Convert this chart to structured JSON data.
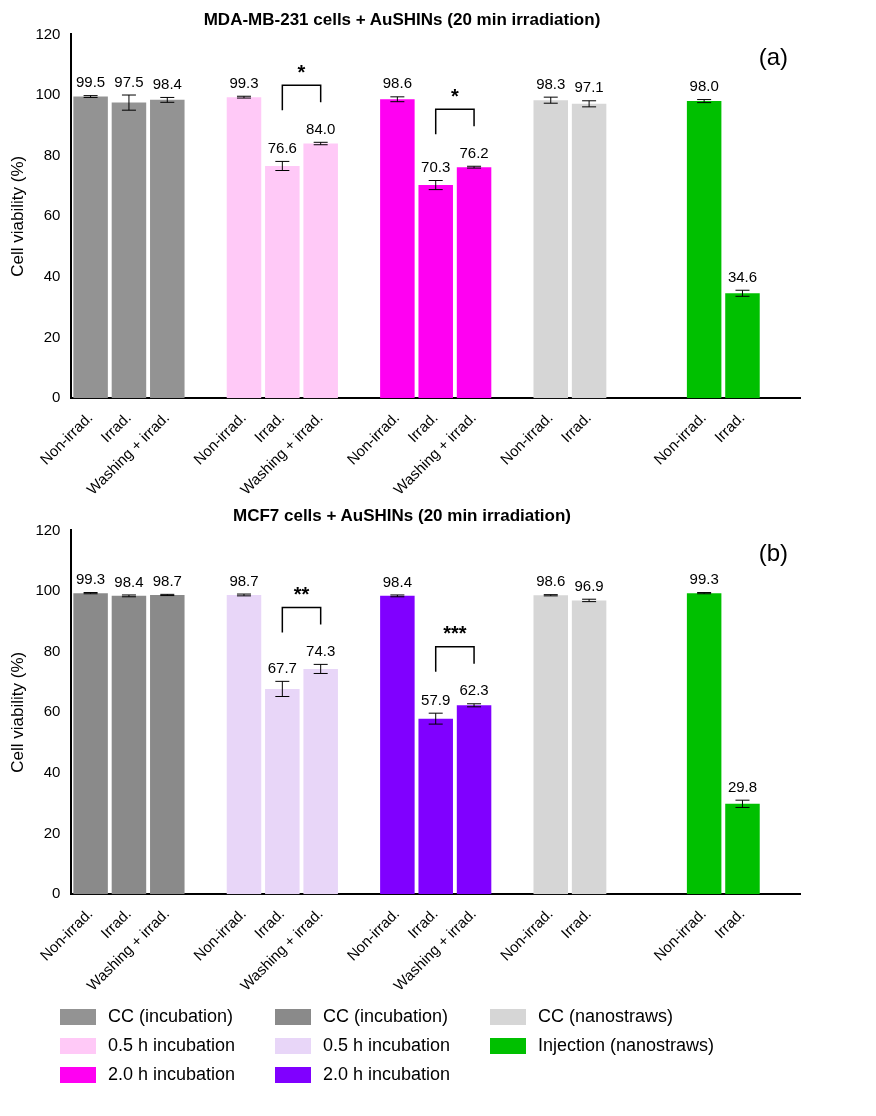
{
  "chart_data": [
    {
      "type": "bar",
      "title": "MDA-MB-231 cells + AuSHINs (20 min irradiation)",
      "ylabel": "Cell viability (%)",
      "ylim": [
        0,
        120
      ],
      "yticks": [
        0,
        20,
        40,
        60,
        80,
        100,
        120
      ],
      "grid": false,
      "legend": "bottom",
      "annotations": [
        "(a)",
        "*",
        "*"
      ],
      "categories": [
        "Non-irrad.",
        "Irrad.",
        "Washing + irrad.",
        null,
        "Non-irrad.",
        "Irrad.",
        "Washing + irrad.",
        null,
        "Non-irrad.",
        "Irrad.",
        "Washing + irrad.",
        null,
        "Non-irrad.",
        "Irrad.",
        null,
        null,
        "Non-irrad.",
        "Irrad.",
        null
      ],
      "series": [
        {
          "name": "CC (incubation)",
          "color": "#939393",
          "values": [
            99.5,
            97.5,
            98.4,
            null,
            null,
            null,
            null,
            null,
            null,
            null,
            null,
            null,
            null,
            null,
            null,
            null,
            null,
            null,
            null
          ],
          "errors": [
            0.3,
            2.5,
            0.8,
            null,
            null,
            null,
            null,
            null,
            null,
            null,
            null,
            null,
            null,
            null,
            null,
            null,
            null,
            null,
            null
          ],
          "value_labels": [
            "99.5",
            "97.5",
            "98.4",
            null,
            null,
            null,
            null,
            null,
            null,
            null,
            null,
            null,
            null,
            null,
            null,
            null,
            null,
            null,
            null
          ]
        },
        {
          "name": "0.5 h incubation",
          "color": "#ffc9f7",
          "values": [
            null,
            null,
            null,
            null,
            99.3,
            76.6,
            84.0,
            null,
            null,
            null,
            null,
            null,
            null,
            null,
            null,
            null,
            null,
            null,
            null
          ],
          "errors": [
            null,
            null,
            null,
            null,
            0.3,
            1.5,
            0.4,
            null,
            null,
            null,
            null,
            null,
            null,
            null,
            null,
            null,
            null,
            null,
            null
          ],
          "value_labels": [
            null,
            null,
            null,
            null,
            "99.3",
            "76.6",
            "84.0",
            null,
            null,
            null,
            null,
            null,
            null,
            null,
            null,
            null,
            null,
            null,
            null
          ]
        },
        {
          "name": "2.0 h incubation",
          "color": "#ff00f2",
          "values": [
            null,
            null,
            null,
            null,
            null,
            null,
            null,
            null,
            98.6,
            70.3,
            76.2,
            null,
            null,
            null,
            null,
            null,
            null,
            null,
            null
          ],
          "errors": [
            null,
            null,
            null,
            null,
            null,
            null,
            null,
            null,
            0.8,
            1.5,
            0.3,
            null,
            null,
            null,
            null,
            null,
            null,
            null,
            null
          ],
          "value_labels": [
            null,
            null,
            null,
            null,
            null,
            null,
            null,
            null,
            "98.6",
            "70.3",
            "76.2",
            null,
            null,
            null,
            null,
            null,
            null,
            null,
            null
          ]
        },
        {
          "name": "CC (nanostraws)",
          "color": "#d6d6d6",
          "values": [
            null,
            null,
            null,
            null,
            null,
            null,
            null,
            null,
            null,
            null,
            null,
            null,
            98.3,
            97.1,
            null,
            null,
            null,
            null,
            null
          ],
          "errors": [
            null,
            null,
            null,
            null,
            null,
            null,
            null,
            null,
            null,
            null,
            null,
            null,
            1.0,
            1.0,
            null,
            null,
            null,
            null,
            null
          ],
          "value_labels": [
            null,
            null,
            null,
            null,
            null,
            null,
            null,
            null,
            null,
            null,
            null,
            null,
            "98.3",
            "97.1",
            null,
            null,
            null,
            null,
            null
          ]
        },
        {
          "name": "Injection (nanostraws)",
          "color": "#00c000",
          "values": [
            null,
            null,
            null,
            null,
            null,
            null,
            null,
            null,
            null,
            null,
            null,
            null,
            null,
            null,
            null,
            null,
            98.0,
            34.6,
            null
          ],
          "errors": [
            null,
            null,
            null,
            null,
            null,
            null,
            null,
            null,
            null,
            null,
            null,
            null,
            null,
            null,
            null,
            null,
            0.5,
            1.0,
            null
          ],
          "value_labels": [
            null,
            null,
            null,
            null,
            null,
            null,
            null,
            null,
            null,
            null,
            null,
            null,
            null,
            null,
            null,
            null,
            "98.0",
            "34.6",
            null
          ]
        }
      ]
    },
    {
      "type": "bar",
      "title": "MCF7 cells + AuSHINs (20 min irradiation)",
      "ylabel": "Cell viability (%)",
      "ylim": [
        0,
        120
      ],
      "yticks": [
        0,
        20,
        40,
        60,
        80,
        100,
        120
      ],
      "grid": false,
      "legend": "bottom",
      "annotations": [
        "(b)",
        "**",
        "***"
      ],
      "categories": [
        "Non-irrad.",
        "Irrad.",
        "Washing + irrad.",
        null,
        "Non-irrad.",
        "Irrad.",
        "Washing + irrad.",
        null,
        "Non-irrad.",
        "Irrad.",
        "Washing + irrad.",
        null,
        "Non-irrad.",
        "Irrad.",
        null,
        null,
        "Non-irrad.",
        "Irrad.",
        null
      ],
      "series": [
        {
          "name": "CC (incubation)",
          "color": "#8a8a8a",
          "values": [
            99.3,
            98.4,
            98.7,
            null,
            null,
            null,
            null,
            null,
            null,
            null,
            null,
            null,
            null,
            null,
            null,
            null,
            null,
            null,
            null
          ],
          "errors": [
            0.2,
            0.3,
            0.2,
            null,
            null,
            null,
            null,
            null,
            null,
            null,
            null,
            null,
            null,
            null,
            null,
            null,
            null,
            null,
            null
          ],
          "value_labels": [
            "99.3",
            "98.4",
            "98.7",
            null,
            null,
            null,
            null,
            null,
            null,
            null,
            null,
            null,
            null,
            null,
            null,
            null,
            null,
            null,
            null
          ]
        },
        {
          "name": "0.5 h incubation",
          "color": "#e8d6f8",
          "values": [
            null,
            null,
            null,
            null,
            98.7,
            67.7,
            74.3,
            null,
            null,
            null,
            null,
            null,
            null,
            null,
            null,
            null,
            null,
            null,
            null
          ],
          "errors": [
            null,
            null,
            null,
            null,
            0.3,
            2.5,
            1.5,
            null,
            null,
            null,
            null,
            null,
            null,
            null,
            null,
            null,
            null,
            null,
            null
          ],
          "value_labels": [
            null,
            null,
            null,
            null,
            "98.7",
            "67.7",
            "74.3",
            null,
            null,
            null,
            null,
            null,
            null,
            null,
            null,
            null,
            null,
            null,
            null
          ]
        },
        {
          "name": "2.0 h incubation",
          "color": "#8000ff",
          "values": [
            null,
            null,
            null,
            null,
            null,
            null,
            null,
            null,
            98.4,
            57.9,
            62.3,
            null,
            null,
            null,
            null,
            null,
            null,
            null,
            null
          ],
          "errors": [
            null,
            null,
            null,
            null,
            null,
            null,
            null,
            null,
            0.3,
            1.8,
            0.5,
            null,
            null,
            null,
            null,
            null,
            null,
            null,
            null
          ],
          "value_labels": [
            null,
            null,
            null,
            null,
            null,
            null,
            null,
            null,
            "98.4",
            "57.9",
            "62.3",
            null,
            null,
            null,
            null,
            null,
            null,
            null,
            null
          ]
        },
        {
          "color": "#d6d6d6",
          "values": [
            null,
            null,
            null,
            null,
            null,
            null,
            null,
            null,
            null,
            null,
            null,
            null,
            98.6,
            96.9,
            null,
            null,
            null,
            null,
            null
          ],
          "errors": [
            null,
            null,
            null,
            null,
            null,
            null,
            null,
            null,
            null,
            null,
            null,
            null,
            0.2,
            0.4,
            null,
            null,
            null,
            null,
            null
          ],
          "value_labels": [
            null,
            null,
            null,
            null,
            null,
            null,
            null,
            null,
            null,
            null,
            null,
            null,
            "98.6",
            "96.9",
            null,
            null,
            null,
            null,
            null
          ]
        },
        {
          "color": "#00c000",
          "values": [
            null,
            null,
            null,
            null,
            null,
            null,
            null,
            null,
            null,
            null,
            null,
            null,
            null,
            null,
            null,
            null,
            99.3,
            29.8,
            null
          ],
          "errors": [
            null,
            null,
            null,
            null,
            null,
            null,
            null,
            null,
            null,
            null,
            null,
            null,
            null,
            null,
            null,
            null,
            0.2,
            1.2,
            null
          ],
          "value_labels": [
            null,
            null,
            null,
            null,
            null,
            null,
            null,
            null,
            null,
            null,
            null,
            null,
            null,
            null,
            null,
            null,
            "99.3",
            "29.8",
            null
          ]
        }
      ]
    }
  ]
}
